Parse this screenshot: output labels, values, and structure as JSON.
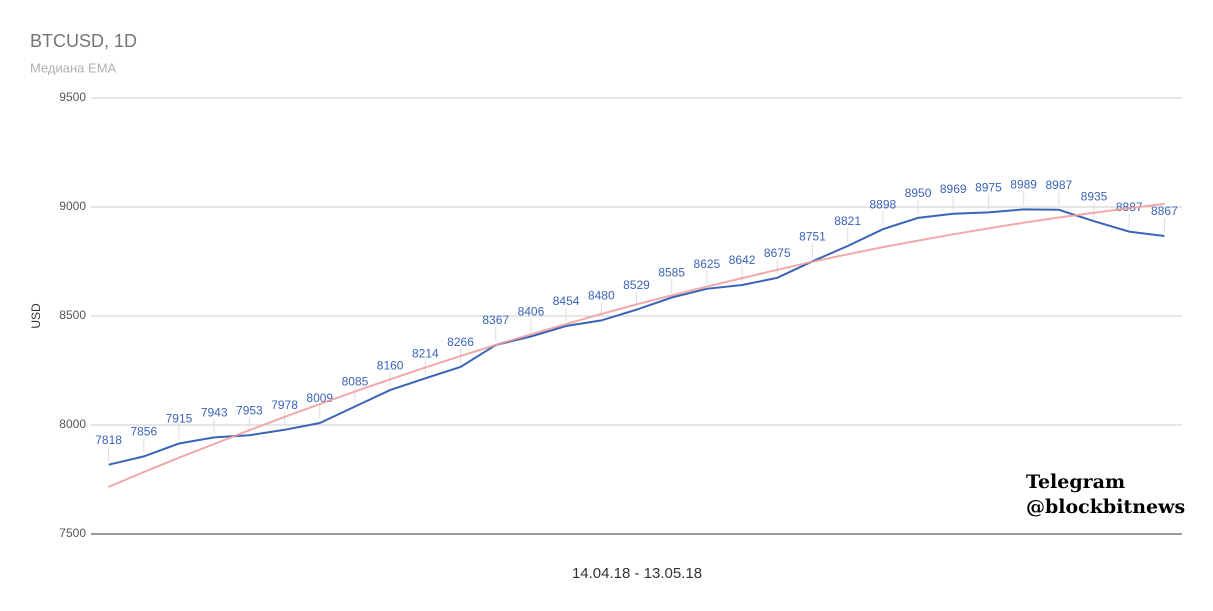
{
  "chart_data": {
    "type": "line",
    "title": "BTCUSD, 1D",
    "subtitle": "Медиана EMA",
    "x_label": "14.04.18 - 13.05.18",
    "y_label": "USD",
    "annotation": [
      "Telegram",
      "@blockbitnews"
    ],
    "categories": [
      null,
      null,
      null,
      null,
      null,
      null,
      null,
      null,
      null,
      null,
      null,
      null,
      null,
      null,
      null,
      null,
      null,
      null,
      null,
      null,
      null,
      null,
      null,
      null,
      null,
      null,
      null,
      null,
      null,
      null,
      null
    ],
    "series": [
      {
        "color": "#3b63b8",
        "data_labels": true,
        "values": [
          7818,
          7856,
          7915,
          7943,
          7953,
          7978,
          8009,
          8085,
          8160,
          8214,
          8266,
          8367,
          8406,
          8454,
          8480,
          8529,
          8585,
          8625,
          8642,
          8675,
          8751,
          8821,
          8898,
          8950,
          8969,
          8975,
          8989,
          8987,
          8935,
          8887,
          8867
        ]
      },
      {
        "color": "#ef9a9a",
        "data_labels": false,
        "values": [
          7716,
          7784,
          7850,
          7913,
          7976,
          8037,
          8096,
          8154,
          8209,
          8264,
          8316,
          8367,
          8416,
          8463,
          8509,
          8553,
          8595,
          8635,
          8674,
          8712,
          8749,
          8783,
          8816,
          8846,
          8875,
          8902,
          8928,
          8952,
          8974,
          8995,
          9014
        ]
      }
    ],
    "ylim": [
      7500,
      9500
    ],
    "yticks": [
      7500,
      8000,
      8500,
      9000,
      9500
    ],
    "grid": true
  }
}
